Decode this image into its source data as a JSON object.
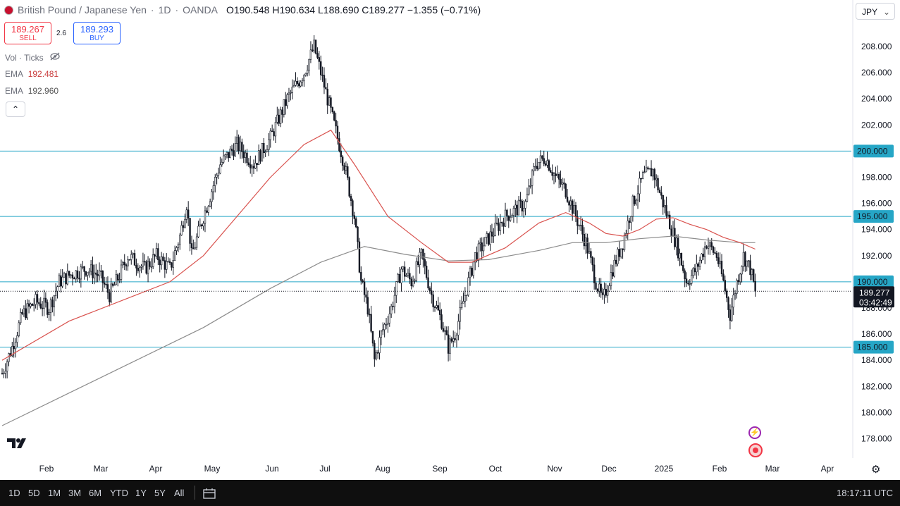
{
  "header": {
    "symbol": "British Pound / Japanese Yen",
    "interval": "1D",
    "exchange": "OANDA",
    "open_label": "O",
    "open": "190.548",
    "high_label": "H",
    "high": "190.634",
    "low_label": "L",
    "low": "188.690",
    "close_label": "C",
    "close": "189.277",
    "change": "−1.355 (−0.71%)"
  },
  "trade": {
    "sell_price": "189.267",
    "sell_label": "SELL",
    "spread": "2.6",
    "buy_price": "189.293",
    "buy_label": "BUY"
  },
  "indicators": {
    "volume": "Vol · Ticks",
    "ema1_label": "EMA",
    "ema1_value": "192.481",
    "ema2_label": "EMA",
    "ema2_value": "192.960"
  },
  "currency": "JPY",
  "toolbar": {
    "timeframes": [
      "1D",
      "5D",
      "1M",
      "3M",
      "6M",
      "YTD",
      "1Y",
      "5Y",
      "All"
    ],
    "clock": "18:17:11 UTC"
  },
  "colors": {
    "up": "#131722",
    "down": "#131722",
    "ema_fast": "#d9534f",
    "ema_slow": "#8c8c8c",
    "hline": "#26a6c6",
    "price_label_bg": "#131722"
  },
  "icons": [
    "eye-off-icon",
    "collapse-chevron-icon",
    "calendar-range-icon",
    "settings-gear-icon",
    "tradingview-logo",
    "lightning-alert-icon",
    "record-icon"
  ],
  "chart_data": {
    "type": "candlestick",
    "x_ticks": [
      "Feb",
      "Mar",
      "Apr",
      "May",
      "Jun",
      "Jul",
      "Aug",
      "Sep",
      "Oct",
      "Nov",
      "Dec",
      "2025",
      "Feb",
      "Mar",
      "Apr"
    ],
    "y_ticks": [
      178,
      180,
      182,
      184,
      186,
      188,
      190,
      192,
      194,
      196,
      198,
      200,
      202,
      204,
      206,
      208
    ],
    "ylim": [
      176,
      210
    ],
    "horizontal_lines": [
      {
        "value": 200,
        "label": "200.000"
      },
      {
        "value": 195,
        "label": "195.000"
      },
      {
        "value": 190,
        "label": "190.000"
      },
      {
        "value": 185,
        "label": "185.000"
      }
    ],
    "last_price": {
      "value": 189.277,
      "label": "189.277",
      "countdown": "03:42:49"
    },
    "waypoints": [
      [
        0,
        183
      ],
      [
        6,
        185
      ],
      [
        12,
        187.5
      ],
      [
        20,
        188.5
      ],
      [
        28,
        188
      ],
      [
        34,
        190
      ],
      [
        40,
        190.5
      ],
      [
        50,
        191
      ],
      [
        58,
        190.5
      ],
      [
        64,
        189
      ],
      [
        70,
        190.5
      ],
      [
        75,
        192
      ],
      [
        85,
        191
      ],
      [
        92,
        192
      ],
      [
        100,
        191
      ],
      [
        106,
        193.5
      ],
      [
        110,
        196
      ],
      [
        113,
        192
      ],
      [
        120,
        195
      ],
      [
        130,
        199
      ],
      [
        140,
        200.5
      ],
      [
        150,
        199
      ],
      [
        160,
        201
      ],
      [
        170,
        204
      ],
      [
        180,
        206
      ],
      [
        186,
        208
      ],
      [
        192,
        205
      ],
      [
        198,
        202
      ],
      [
        204,
        199
      ],
      [
        210,
        195
      ],
      [
        214,
        190
      ],
      [
        218,
        188
      ],
      [
        222,
        184
      ],
      [
        226,
        186
      ],
      [
        232,
        188
      ],
      [
        238,
        191
      ],
      [
        244,
        190
      ],
      [
        250,
        192
      ],
      [
        256,
        189
      ],
      [
        262,
        187
      ],
      [
        266,
        185
      ],
      [
        270,
        186
      ],
      [
        276,
        189
      ],
      [
        282,
        192
      ],
      [
        288,
        193
      ],
      [
        294,
        194
      ],
      [
        300,
        195
      ],
      [
        306,
        195.5
      ],
      [
        312,
        196
      ],
      [
        318,
        199
      ],
      [
        324,
        199.5
      ],
      [
        330,
        198
      ],
      [
        336,
        197
      ],
      [
        342,
        195
      ],
      [
        348,
        193
      ],
      [
        354,
        190
      ],
      [
        358,
        188.5
      ],
      [
        364,
        191
      ],
      [
        370,
        193
      ],
      [
        376,
        196
      ],
      [
        382,
        198
      ],
      [
        388,
        198.5
      ],
      [
        394,
        196
      ],
      [
        398,
        194.5
      ],
      [
        404,
        192
      ],
      [
        408,
        190
      ],
      [
        414,
        191
      ],
      [
        420,
        193
      ],
      [
        426,
        192
      ],
      [
        430,
        190
      ],
      [
        434,
        187.5
      ],
      [
        438,
        190
      ],
      [
        442,
        192
      ],
      [
        446,
        191
      ],
      [
        449,
        189.3
      ]
    ],
    "ema_fast_points": [
      [
        0,
        184
      ],
      [
        40,
        187
      ],
      [
        80,
        189
      ],
      [
        100,
        190
      ],
      [
        120,
        192
      ],
      [
        140,
        195
      ],
      [
        160,
        198
      ],
      [
        180,
        200.5
      ],
      [
        196,
        201.6
      ],
      [
        210,
        199
      ],
      [
        230,
        195
      ],
      [
        250,
        193
      ],
      [
        266,
        191.5
      ],
      [
        280,
        191.5
      ],
      [
        300,
        192.6
      ],
      [
        320,
        194.5
      ],
      [
        336,
        195.3
      ],
      [
        350,
        194.5
      ],
      [
        360,
        193.7
      ],
      [
        370,
        193.5
      ],
      [
        380,
        194
      ],
      [
        390,
        194.8
      ],
      [
        400,
        194.9
      ],
      [
        410,
        194.4
      ],
      [
        420,
        194
      ],
      [
        430,
        193.4
      ],
      [
        440,
        193
      ],
      [
        449,
        192.5
      ]
    ],
    "ema_slow_points": [
      [
        0,
        179
      ],
      [
        40,
        181.5
      ],
      [
        80,
        184
      ],
      [
        120,
        186.5
      ],
      [
        160,
        189.5
      ],
      [
        190,
        191.5
      ],
      [
        216,
        192.7
      ],
      [
        240,
        192.1
      ],
      [
        266,
        191.6
      ],
      [
        290,
        191.7
      ],
      [
        320,
        192.4
      ],
      [
        340,
        193
      ],
      [
        360,
        193
      ],
      [
        380,
        193.3
      ],
      [
        400,
        193.5
      ],
      [
        420,
        193.2
      ],
      [
        440,
        193
      ],
      [
        449,
        193
      ]
    ]
  }
}
